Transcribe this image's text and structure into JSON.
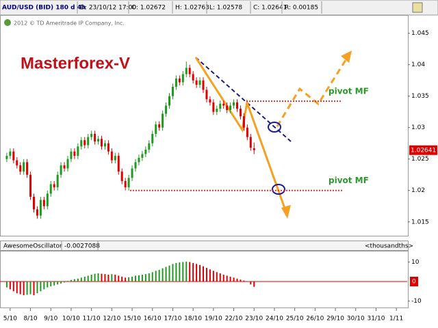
{
  "header": {
    "symbol": "AUD/USD (BID) 180 d 4h",
    "date": "D: 23/10/12 17:00",
    "open": "O: 1.02672",
    "high": "H: 1.02763",
    "low": "L: 1.02578",
    "close": "C: 1.02641",
    "range": "R: 0.00185"
  },
  "chart_data": [
    {
      "type": "candlestick",
      "title": "Masterforex-V",
      "subtitle": "2012 © TD Ameritrade IP Company, Inc.",
      "up_color": "#1f9a1f",
      "down_color": "#e00000",
      "x": [
        2,
        3,
        4,
        5,
        6,
        7,
        8,
        9,
        10,
        11,
        12,
        13,
        14,
        15,
        16,
        17,
        18,
        19,
        20,
        21,
        22,
        23,
        24,
        25,
        26,
        27,
        28,
        29,
        30,
        31,
        32,
        33,
        34,
        35,
        36,
        37,
        38,
        39,
        40,
        41,
        42,
        43,
        44,
        45,
        46,
        47,
        48,
        49,
        50,
        51,
        52,
        53,
        54,
        55,
        56,
        57,
        58,
        59,
        60,
        61,
        62,
        63,
        64,
        65,
        66,
        67,
        68,
        69,
        70,
        71,
        72,
        73,
        74,
        75
      ],
      "open": [
        1.025,
        1.0255,
        1.0262,
        1.0248,
        1.024,
        1.023,
        1.0245,
        1.0225,
        1.019,
        1.017,
        1.016,
        1.0185,
        1.0175,
        1.0195,
        1.021,
        1.0205,
        1.0225,
        1.024,
        1.0235,
        1.025,
        1.0262,
        1.0255,
        1.027,
        1.028,
        1.0272,
        1.0285,
        1.029,
        1.0278,
        1.0282,
        1.027,
        1.0275,
        1.0262,
        1.0248,
        1.0255,
        1.023,
        1.0215,
        1.0205,
        1.022,
        1.0235,
        1.0245,
        1.0252,
        1.0258,
        1.0265,
        1.0275,
        1.029,
        1.0305,
        1.03,
        1.0322,
        1.0335,
        1.035,
        1.0365,
        1.0378,
        1.0372,
        1.0385,
        1.0395,
        1.0385,
        1.0375,
        1.0368,
        1.0375,
        1.036,
        1.0345,
        1.034,
        1.0325,
        1.033,
        1.0338,
        1.0335,
        1.0328,
        1.0335,
        1.034,
        1.033,
        1.0318,
        1.03,
        1.0285,
        1.02672
      ],
      "high": [
        1.026,
        1.0267,
        1.0267,
        1.0253,
        1.0245,
        1.025,
        1.025,
        1.023,
        1.0195,
        1.0175,
        1.019,
        1.019,
        1.02,
        1.0215,
        1.0215,
        1.023,
        1.0245,
        1.0245,
        1.0255,
        1.0267,
        1.0267,
        1.0275,
        1.0285,
        1.0285,
        1.029,
        1.0295,
        1.0295,
        1.0287,
        1.0287,
        1.028,
        1.028,
        1.0267,
        1.026,
        1.026,
        1.0235,
        1.022,
        1.0225,
        1.024,
        1.025,
        1.0257,
        1.0263,
        1.027,
        1.028,
        1.0295,
        1.031,
        1.031,
        1.0327,
        1.034,
        1.0355,
        1.037,
        1.0383,
        1.0383,
        1.039,
        1.0405,
        1.04,
        1.039,
        1.038,
        1.038,
        1.038,
        1.0365,
        1.035,
        1.0345,
        1.0335,
        1.0343,
        1.0343,
        1.034,
        1.034,
        1.0345,
        1.0345,
        1.0335,
        1.0323,
        1.0305,
        1.029,
        1.02763
      ],
      "low": [
        1.0245,
        1.025,
        1.0243,
        1.0235,
        1.0225,
        1.0225,
        1.022,
        1.0185,
        1.0165,
        1.0155,
        1.0155,
        1.017,
        1.017,
        1.019,
        1.02,
        1.02,
        1.022,
        1.023,
        1.023,
        1.0245,
        1.025,
        1.025,
        1.0265,
        1.0267,
        1.0267,
        1.028,
        1.0273,
        1.0273,
        1.0265,
        1.0265,
        1.0257,
        1.0243,
        1.0243,
        1.0225,
        1.021,
        1.02,
        1.02,
        1.0215,
        1.023,
        1.024,
        1.0247,
        1.0253,
        1.026,
        1.027,
        1.0285,
        1.0295,
        1.0295,
        1.0317,
        1.033,
        1.0345,
        1.036,
        1.0367,
        1.0367,
        1.038,
        1.038,
        1.037,
        1.0363,
        1.0363,
        1.0355,
        1.034,
        1.0335,
        1.032,
        1.032,
        1.0325,
        1.033,
        1.0323,
        1.0323,
        1.033,
        1.0325,
        1.0313,
        1.0295,
        1.028,
        1.0263,
        1.02578
      ],
      "close": [
        1.0255,
        1.0262,
        1.0248,
        1.024,
        1.023,
        1.0245,
        1.0225,
        1.019,
        1.017,
        1.016,
        1.0185,
        1.0175,
        1.0195,
        1.021,
        1.0205,
        1.0225,
        1.024,
        1.0235,
        1.025,
        1.0262,
        1.0255,
        1.027,
        1.028,
        1.0272,
        1.0285,
        1.029,
        1.0278,
        1.0282,
        1.027,
        1.0275,
        1.0262,
        1.0248,
        1.0255,
        1.023,
        1.0215,
        1.0205,
        1.022,
        1.0235,
        1.0245,
        1.0252,
        1.0258,
        1.0265,
        1.0275,
        1.029,
        1.0305,
        1.03,
        1.0322,
        1.0335,
        1.035,
        1.0365,
        1.0378,
        1.0372,
        1.0385,
        1.0395,
        1.0385,
        1.0375,
        1.0368,
        1.0375,
        1.036,
        1.0345,
        1.034,
        1.0325,
        1.033,
        1.0338,
        1.0335,
        1.0328,
        1.0335,
        1.034,
        1.033,
        1.0318,
        1.03,
        1.0285,
        1.0268,
        1.02641
      ],
      "xlim": [
        0,
        120.2
      ],
      "ylim": [
        1.0128,
        1.0479
      ],
      "yticks": [
        1.015,
        1.02,
        1.025,
        1.03,
        1.035,
        1.04,
        1.045
      ],
      "pivots": [
        {
          "value": 1.0342,
          "label": "pivot MF"
        },
        {
          "value": 1.02,
          "label": "pivot MF"
        }
      ],
      "pivot_color": "#e03030"
    },
    {
      "type": "bar",
      "title": "AwesomeOscillator",
      "current": "-0.0027088",
      "units": "<thousandths>",
      "up_color": "#1f9a1f",
      "down_color": "#e00000",
      "x": [
        2,
        3,
        4,
        5,
        6,
        7,
        8,
        9,
        10,
        11,
        12,
        13,
        14,
        15,
        16,
        17,
        18,
        19,
        20,
        21,
        22,
        23,
        24,
        25,
        26,
        27,
        28,
        29,
        30,
        31,
        32,
        33,
        34,
        35,
        36,
        37,
        38,
        39,
        40,
        41,
        42,
        43,
        44,
        45,
        46,
        47,
        48,
        49,
        50,
        51,
        52,
        53,
        54,
        55,
        56,
        57,
        58,
        59,
        60,
        61,
        62,
        63,
        64,
        65,
        66,
        67,
        68,
        69,
        70,
        71,
        72,
        73,
        74,
        75
      ],
      "values": [
        -3,
        -4,
        -5,
        -6,
        -6.5,
        -7,
        -6.8,
        -6.5,
        -7,
        -6,
        -5,
        -4,
        -3,
        -2.5,
        -2,
        -1.5,
        -1,
        -0.5,
        0.3,
        0.8,
        1.2,
        1.5,
        2,
        2.5,
        3,
        3.5,
        4,
        4.2,
        4,
        3.8,
        3.5,
        3.8,
        3.5,
        3,
        2.5,
        2,
        2.2,
        2.5,
        3,
        3.2,
        3.5,
        3.8,
        4.2,
        4.8,
        5.5,
        6,
        6.8,
        7.5,
        8.2,
        9,
        9.5,
        9.8,
        10,
        10.2,
        10,
        9.5,
        9,
        8.5,
        7.8,
        7,
        6.2,
        5.5,
        4.8,
        4.2,
        3.5,
        3,
        2.5,
        2,
        1.5,
        1,
        0.5,
        0,
        -1.5,
        -2.7088
      ],
      "xlim": [
        0,
        120.2
      ],
      "ylim": [
        -13.3,
        15.4
      ],
      "yticks": [
        -10,
        0,
        10
      ],
      "xticks": [
        {
          "value": 3,
          "label": "5/10"
        },
        {
          "value": 9,
          "label": "8/10"
        },
        {
          "value": 15,
          "label": "9/10"
        },
        {
          "value": 21,
          "label": "10/10"
        },
        {
          "value": 27,
          "label": "11/10"
        },
        {
          "value": 33,
          "label": "12/10"
        },
        {
          "value": 39,
          "label": "15/10"
        },
        {
          "value": 45,
          "label": "16/10"
        },
        {
          "value": 51,
          "label": "17/10"
        },
        {
          "value": 57,
          "label": "18/10"
        },
        {
          "value": 63,
          "label": "19/10"
        },
        {
          "value": 69,
          "label": "22/10"
        },
        {
          "value": 75,
          "label": "23/10"
        },
        {
          "value": 81,
          "label": "24/10"
        },
        {
          "value": 87,
          "label": "25/10"
        },
        {
          "value": 93,
          "label": "26/10"
        },
        {
          "value": 99,
          "label": "29/10"
        },
        {
          "value": 105,
          "label": "30/10"
        },
        {
          "value": 111,
          "label": "31/10"
        },
        {
          "value": 117,
          "label": "1/11"
        }
      ]
    }
  ]
}
